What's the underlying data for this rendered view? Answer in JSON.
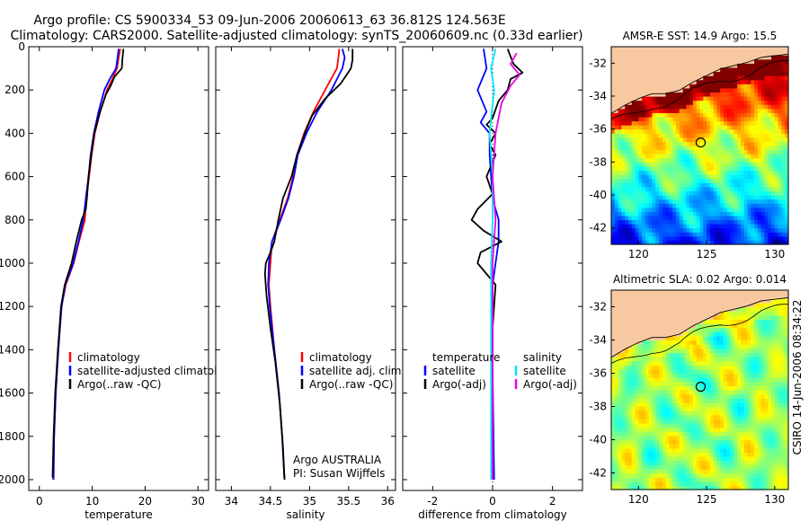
{
  "title": {
    "line1": "Argo profile: CS 5900334_53 09-Jun-2006 20060613_63 36.812S 124.563E",
    "line2": "Climatology: CARS2000. Satellite-adjusted climatology: synTS_20060609.nc (0.33d earlier)"
  },
  "side_label": "CSIRO 14-Jun-2006 08:34:22",
  "colors": {
    "climatology": "#ff0000",
    "satellite": "#0000ff",
    "argo": "#000000",
    "salinity_satellite": "#00e5ff",
    "salinity_argo": "#e600e6",
    "land": "#f8c9a0",
    "marker": "#000000"
  },
  "chart_data": [
    {
      "type": "line",
      "name": "temperature-panel",
      "xlabel": "temperature",
      "ylabel": "",
      "xlim": [
        -2,
        32
      ],
      "ylim": [
        2050,
        0
      ],
      "xticks": [
        0,
        10,
        20,
        30
      ],
      "yticks": [
        0,
        200,
        400,
        600,
        800,
        1000,
        1200,
        1400,
        1600,
        1800,
        2000
      ],
      "legend": [
        "climatology",
        "satellite-adjusted climatology",
        "Argo(..raw -QC)"
      ],
      "series": [
        {
          "name": "climatology",
          "color_key": "climatology",
          "points": [
            [
              15.3,
              10
            ],
            [
              15.0,
              50
            ],
            [
              14.7,
              100
            ],
            [
              13.8,
              150
            ],
            [
              12.8,
              200
            ],
            [
              11.5,
              300
            ],
            [
              10.5,
              400
            ],
            [
              9.9,
              500
            ],
            [
              9.4,
              600
            ],
            [
              8.9,
              700
            ],
            [
              8.6,
              800
            ],
            [
              7.5,
              900
            ],
            [
              6.5,
              1000
            ],
            [
              5.0,
              1100
            ],
            [
              4.2,
              1200
            ],
            [
              3.6,
              1400
            ],
            [
              3.1,
              1600
            ],
            [
              2.8,
              1800
            ],
            [
              2.6,
              2000
            ]
          ]
        },
        {
          "name": "satellite-adjusted climatology",
          "color_key": "satellite",
          "points": [
            [
              15.0,
              10
            ],
            [
              14.8,
              50
            ],
            [
              14.5,
              100
            ],
            [
              13.3,
              150
            ],
            [
              12.3,
              200
            ],
            [
              11.2,
              300
            ],
            [
              10.3,
              400
            ],
            [
              9.7,
              500
            ],
            [
              9.3,
              600
            ],
            [
              8.8,
              700
            ],
            [
              8.3,
              800
            ],
            [
              7.4,
              900
            ],
            [
              6.4,
              1000
            ],
            [
              4.9,
              1100
            ],
            [
              4.2,
              1200
            ],
            [
              3.6,
              1400
            ],
            [
              3.1,
              1600
            ],
            [
              2.8,
              1800
            ],
            [
              2.7,
              2000
            ]
          ]
        },
        {
          "name": "Argo(..raw -QC)",
          "color_key": "argo",
          "points": [
            [
              15.9,
              10
            ],
            [
              15.7,
              60
            ],
            [
              15.6,
              100
            ],
            [
              14.2,
              140
            ],
            [
              13.5,
              180
            ],
            [
              12.6,
              220
            ],
            [
              11.5,
              300
            ],
            [
              10.4,
              400
            ],
            [
              9.8,
              500
            ],
            [
              9.3,
              600
            ],
            [
              9.0,
              700
            ],
            [
              8.8,
              750
            ],
            [
              8.0,
              800
            ],
            [
              7.0,
              900
            ],
            [
              6.1,
              1000
            ],
            [
              4.8,
              1100
            ],
            [
              4.1,
              1200
            ],
            [
              3.5,
              1400
            ],
            [
              3.0,
              1600
            ],
            [
              2.7,
              1800
            ],
            [
              2.5,
              1990
            ]
          ]
        }
      ]
    },
    {
      "type": "line",
      "name": "salinity-panel",
      "xlabel": "salinity",
      "xlim": [
        33.8,
        36.1
      ],
      "ylim": [
        2050,
        0
      ],
      "xticks": [
        34,
        34.5,
        35,
        35.5,
        36
      ],
      "legend": [
        "climatology",
        "satellite adj. clim.",
        "Argo(..raw -QC)"
      ],
      "annotation": {
        "line1": "Argo AUSTRALIA",
        "line2": "PI: Susan Wijffels"
      },
      "series": [
        {
          "name": "climatology",
          "color_key": "climatology",
          "points": [
            [
              35.38,
              10
            ],
            [
              35.37,
              50
            ],
            [
              35.35,
              100
            ],
            [
              35.2,
              200
            ],
            [
              35.05,
              300
            ],
            [
              34.93,
              400
            ],
            [
              34.84,
              500
            ],
            [
              34.79,
              600
            ],
            [
              34.72,
              700
            ],
            [
              34.62,
              800
            ],
            [
              34.52,
              900
            ],
            [
              34.5,
              1000
            ],
            [
              34.48,
              1100
            ],
            [
              34.5,
              1200
            ],
            [
              34.55,
              1400
            ],
            [
              34.61,
              1600
            ],
            [
              34.65,
              1800
            ],
            [
              34.68,
              2000
            ]
          ]
        },
        {
          "name": "satellite adj. clim.",
          "color_key": "satellite",
          "points": [
            [
              35.42,
              10
            ],
            [
              35.45,
              50
            ],
            [
              35.42,
              100
            ],
            [
              35.28,
              200
            ],
            [
              35.1,
              300
            ],
            [
              34.96,
              400
            ],
            [
              34.85,
              500
            ],
            [
              34.8,
              600
            ],
            [
              34.73,
              700
            ],
            [
              34.63,
              800
            ],
            [
              34.52,
              900
            ],
            [
              34.48,
              1000
            ],
            [
              34.47,
              1100
            ],
            [
              34.49,
              1200
            ],
            [
              34.55,
              1400
            ],
            [
              34.61,
              1600
            ],
            [
              34.65,
              1800
            ],
            [
              34.68,
              2000
            ]
          ]
        },
        {
          "name": "Argo(..raw -QC)",
          "color_key": "argo",
          "points": [
            [
              35.55,
              10
            ],
            [
              35.55,
              60
            ],
            [
              35.53,
              100
            ],
            [
              35.4,
              170
            ],
            [
              35.2,
              240
            ],
            [
              35.03,
              320
            ],
            [
              34.94,
              400
            ],
            [
              34.84,
              500
            ],
            [
              34.77,
              600
            ],
            [
              34.66,
              700
            ],
            [
              34.6,
              800
            ],
            [
              34.55,
              900
            ],
            [
              34.5,
              950
            ],
            [
              34.44,
              1000
            ],
            [
              34.43,
              1050
            ],
            [
              34.45,
              1150
            ],
            [
              34.5,
              1300
            ],
            [
              34.56,
              1450
            ],
            [
              34.62,
              1650
            ],
            [
              34.66,
              1850
            ],
            [
              34.68,
              2000
            ]
          ]
        }
      ]
    },
    {
      "type": "line",
      "name": "difference-panel",
      "xlabel": "difference from climatology",
      "xlim": [
        -3,
        3
      ],
      "ylim": [
        2050,
        0
      ],
      "xticks": [
        -2,
        0,
        2
      ],
      "legend_temperature": {
        "header": "temperature",
        "items": [
          "satellite",
          "Argo(-adj)"
        ]
      },
      "legend_salinity": {
        "header": "salinity",
        "items": [
          "satellite",
          "Argo(-adj)"
        ]
      },
      "series": [
        {
          "name": "temperature satellite",
          "color_key": "satellite",
          "points": [
            [
              -0.3,
              10
            ],
            [
              -0.2,
              100
            ],
            [
              -0.5,
              200
            ],
            [
              -0.2,
              300
            ],
            [
              -0.4,
              350
            ],
            [
              -0.1,
              400
            ],
            [
              -0.1,
              500
            ],
            [
              0.0,
              700
            ],
            [
              0.2,
              800
            ],
            [
              0.2,
              900
            ],
            [
              0.1,
              1000
            ],
            [
              0.0,
              1100
            ],
            [
              0.0,
              1500
            ],
            [
              0.05,
              2000
            ]
          ]
        },
        {
          "name": "temperature Argo(-adj)",
          "color_key": "argo",
          "points": [
            [
              0.5,
              10
            ],
            [
              0.7,
              80
            ],
            [
              1.0,
              120
            ],
            [
              0.6,
              150
            ],
            [
              0.5,
              200
            ],
            [
              0.2,
              250
            ],
            [
              0.0,
              330
            ],
            [
              -0.2,
              360
            ],
            [
              0.1,
              400
            ],
            [
              -0.1,
              450
            ],
            [
              0.1,
              500
            ],
            [
              -0.2,
              600
            ],
            [
              0.0,
              680
            ],
            [
              -0.5,
              750
            ],
            [
              -0.7,
              800
            ],
            [
              -0.3,
              850
            ],
            [
              0.3,
              900
            ],
            [
              -0.4,
              950
            ],
            [
              -0.5,
              1000
            ],
            [
              -0.2,
              1050
            ],
            [
              0.1,
              1100
            ],
            [
              0.0,
              1300
            ],
            [
              0.0,
              1600
            ],
            [
              0.0,
              2000
            ]
          ]
        },
        {
          "name": "salinity satellite",
          "color_key": "salinity_satellite",
          "points": [
            [
              0.1,
              10
            ],
            [
              -0.05,
              100
            ],
            [
              0.05,
              200
            ],
            [
              -0.1,
              400
            ],
            [
              0.0,
              600
            ],
            [
              0.0,
              800
            ],
            [
              -0.05,
              1000
            ],
            [
              -0.05,
              1500
            ],
            [
              -0.05,
              2000
            ]
          ]
        },
        {
          "name": "salinity Argo(-adj)",
          "color_key": "salinity_argo",
          "points": [
            [
              0.8,
              30
            ],
            [
              0.6,
              80
            ],
            [
              0.9,
              130
            ],
            [
              0.6,
              180
            ],
            [
              0.3,
              260
            ],
            [
              0.1,
              400
            ],
            [
              0.0,
              600
            ],
            [
              0.1,
              800
            ],
            [
              0.0,
              1000
            ],
            [
              0.0,
              2000
            ]
          ]
        }
      ]
    },
    {
      "type": "heatmap",
      "name": "sst-map",
      "title": "AMSR-E SST: 14.9 Argo: 15.5",
      "xlim": [
        118,
        131
      ],
      "ylim": [
        -43,
        -31
      ],
      "xticks": [
        120,
        125,
        130
      ],
      "yticks": [
        -32,
        -34,
        -36,
        -38,
        -40,
        -42
      ],
      "marker": {
        "lon": 124.563,
        "lat": -36.812
      }
    },
    {
      "type": "heatmap",
      "name": "sla-map",
      "title": "Altimetric SLA: 0.02 Argo: 0.014",
      "xlim": [
        118,
        131
      ],
      "ylim": [
        -43,
        -31
      ],
      "xticks": [
        120,
        125,
        130
      ],
      "yticks": [
        -32,
        -34,
        -36,
        -38,
        -40,
        -42
      ],
      "marker": {
        "lon": 124.563,
        "lat": -36.812
      }
    }
  ]
}
